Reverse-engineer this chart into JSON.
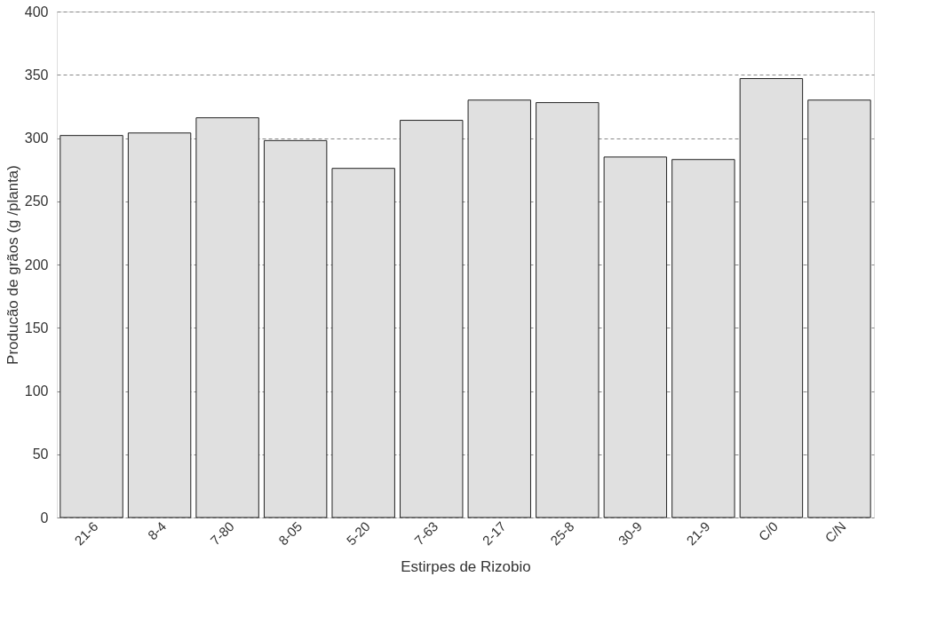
{
  "chart_data": {
    "type": "bar",
    "xlabel": "Estirpes de Rizobio",
    "ylabel": "Producão de grãos (g /planta)",
    "categories": [
      "21-6",
      "8-4",
      "7-80",
      "8-05",
      "5-20",
      "7-63",
      "2-17",
      "25-8",
      "30-9",
      "21-9",
      "C/0",
      "C/N"
    ],
    "values": [
      302,
      304,
      316,
      298,
      276,
      314,
      330,
      328,
      285,
      283,
      347,
      330
    ],
    "color": "#e0e0e0",
    "ylim": [
      0,
      400
    ],
    "yticks": [
      0,
      50,
      100,
      150,
      200,
      250,
      300,
      350,
      400
    ],
    "grid": "y"
  }
}
